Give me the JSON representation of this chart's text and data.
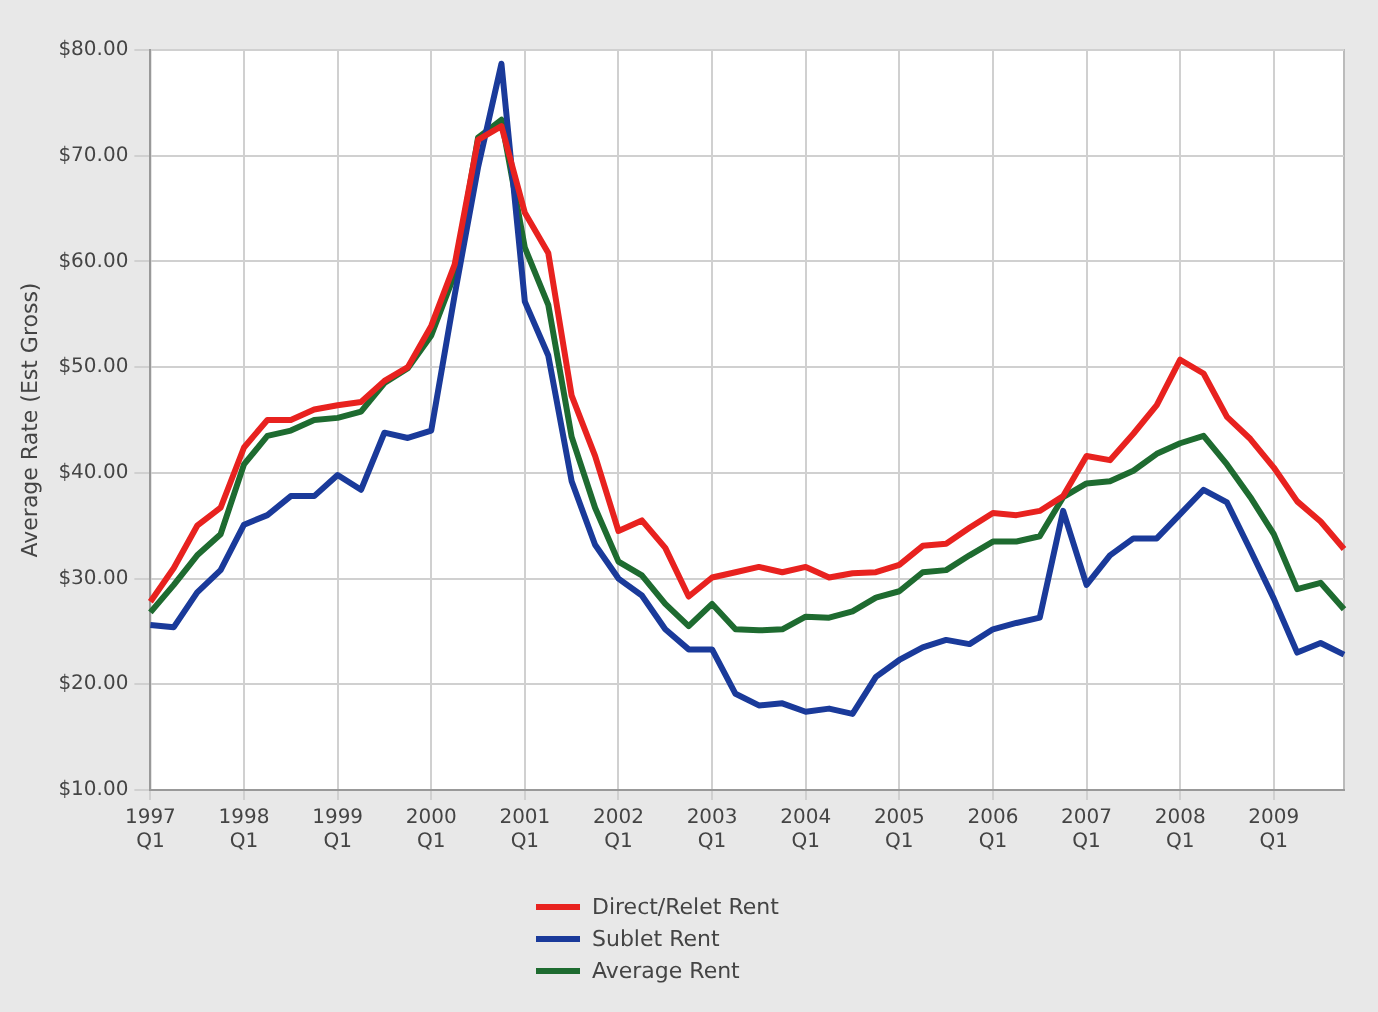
{
  "chart_data": {
    "type": "line",
    "ylabel": "Average Rate (Est Gross)",
    "categories": [
      "1997 Q1",
      null,
      null,
      null,
      "1998 Q1",
      null,
      null,
      null,
      "1999 Q1",
      null,
      null,
      null,
      "2000 Q1",
      null,
      null,
      null,
      "2001 Q1",
      null,
      null,
      null,
      "2002 Q1",
      null,
      null,
      null,
      "2003 Q1",
      null,
      null,
      null,
      "2004 Q1",
      null,
      null,
      null,
      "2005 Q1",
      null,
      null,
      null,
      "2006 Q1",
      null,
      null,
      null,
      "2007 Q1",
      null,
      null,
      null,
      "2008 Q1",
      null,
      null,
      null,
      "2009 Q1",
      null,
      null,
      null
    ],
    "series": [
      {
        "name": "Direct/Relet Rent",
        "color": "#e8221f",
        "values": [
          27.8,
          31,
          35,
          36.7,
          42.4,
          45,
          45,
          46,
          46.4,
          46.7,
          48.7,
          50,
          53.9,
          59.7,
          71.5,
          72.8,
          64.6,
          60.8,
          47.3,
          41.6,
          34.5,
          35.5,
          32.9,
          28.3,
          30.1,
          30.6,
          31.1,
          30.6,
          31.1,
          30.1,
          30.5,
          30.6,
          31.3,
          33.1,
          33.3,
          34.8,
          36.2,
          36,
          36.4,
          37.8,
          41.6,
          41.2,
          43.7,
          46.4,
          50.7,
          49.4,
          45.3,
          43.2,
          40.5,
          37.3,
          35.4,
          32.8
        ]
      },
      {
        "name": "Sublet Rent",
        "color": "#1a3a9a",
        "values": [
          25.6,
          25.4,
          28.7,
          30.8,
          35.1,
          36,
          37.8,
          37.8,
          39.8,
          38.4,
          43.8,
          43.3,
          44,
          56.8,
          68.9,
          78.7,
          56.2,
          51.1,
          39.2,
          33.2,
          30,
          28.4,
          25.2,
          23.3,
          23.3,
          19.1,
          18,
          18.2,
          17.4,
          17.7,
          17.2,
          20.7,
          22.3,
          23.5,
          24.2,
          23.8,
          25.2,
          25.8,
          26.3,
          36.4,
          29.4,
          32.2,
          33.8,
          33.8,
          36.1,
          38.4,
          37.2,
          32.7,
          28.1,
          23,
          23.9,
          22.8
        ]
      },
      {
        "name": "Average Rent",
        "color": "#1e6b30",
        "values": [
          26.8,
          29.4,
          32.2,
          34.2,
          40.8,
          43.5,
          44,
          45,
          45.2,
          45.8,
          48.5,
          49.9,
          53,
          58.8,
          71.7,
          73.4,
          61.3,
          55.9,
          43.4,
          36.7,
          31.6,
          30.3,
          27.6,
          25.5,
          27.6,
          25.2,
          25.1,
          25.2,
          26.4,
          26.3,
          26.9,
          28.2,
          28.8,
          30.6,
          30.8,
          32.2,
          33.5,
          33.5,
          34,
          37.7,
          39,
          39.2,
          40.2,
          41.8,
          42.8,
          43.5,
          40.8,
          37.7,
          34.2,
          29,
          29.6,
          27.1
        ]
      }
    ],
    "ylim": [
      10,
      80
    ],
    "yticks": [
      {
        "value": 10,
        "label": "$10.00"
      },
      {
        "value": 20,
        "label": "$20.00"
      },
      {
        "value": 30,
        "label": "$30.00"
      },
      {
        "value": 40,
        "label": "$40.00"
      },
      {
        "value": 50,
        "label": "$50.00"
      },
      {
        "value": 60,
        "label": "$60.00"
      },
      {
        "value": 70,
        "label": "$70.00"
      },
      {
        "value": 80,
        "label": "$80.00"
      }
    ],
    "grid": true,
    "legend": "bottom",
    "marker": "none",
    "line_style": "solid"
  }
}
